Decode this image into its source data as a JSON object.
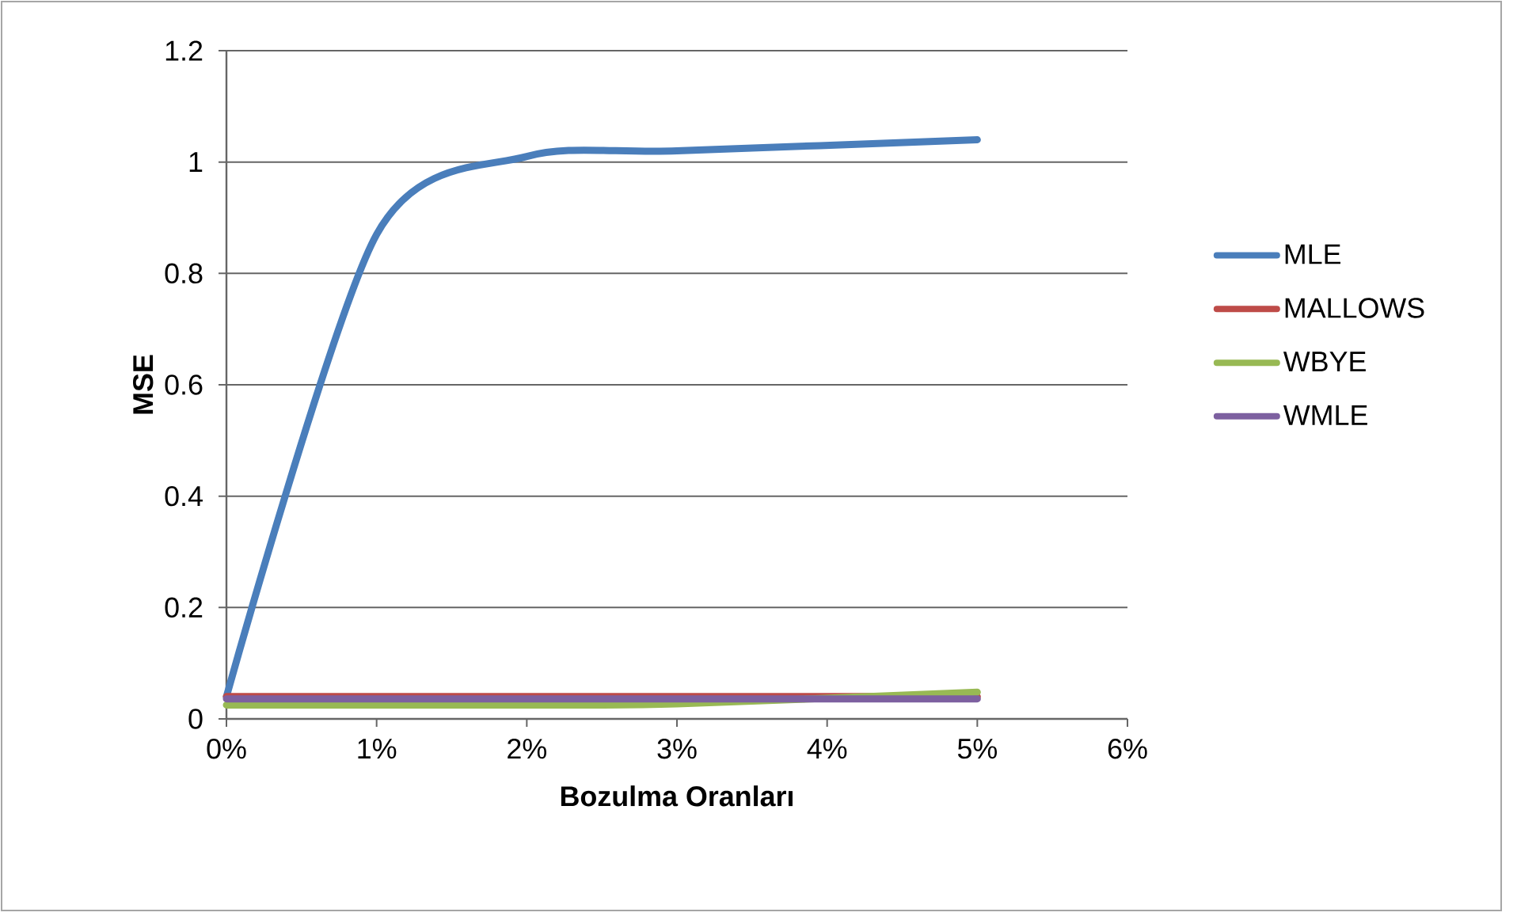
{
  "chart_data": {
    "type": "line",
    "xlabel": "Bozulma Oranları",
    "ylabel": "MSE",
    "x": [
      0,
      1,
      2,
      3,
      5
    ],
    "xlim": [
      0,
      6
    ],
    "ylim": [
      0,
      1.2
    ],
    "xticks": [
      {
        "value": 0,
        "label": "0%"
      },
      {
        "value": 1,
        "label": "1%"
      },
      {
        "value": 2,
        "label": "2%"
      },
      {
        "value": 3,
        "label": "3%"
      },
      {
        "value": 4,
        "label": "4%"
      },
      {
        "value": 5,
        "label": "5%"
      },
      {
        "value": 6,
        "label": "6%"
      }
    ],
    "yticks": [
      0,
      0.2,
      0.4,
      0.6,
      0.8,
      1,
      1.2
    ],
    "grid": "y",
    "legend": "right",
    "line_style": "solid",
    "series": [
      {
        "name": "MLE",
        "color": "#4a7ebb",
        "values": [
          0.04,
          0.87,
          1.01,
          1.02,
          1.04
        ]
      },
      {
        "name": "MALLOWS",
        "color": "#be4b48",
        "values": [
          0.04,
          0.04,
          0.04,
          0.04,
          0.04
        ]
      },
      {
        "name": "WBYE",
        "color": "#98b954",
        "values": [
          0.025,
          0.025,
          0.025,
          0.027,
          0.048
        ]
      },
      {
        "name": "WMLE",
        "color": "#7d60a0",
        "values": [
          0.036,
          0.036,
          0.036,
          0.036,
          0.036
        ]
      }
    ]
  }
}
